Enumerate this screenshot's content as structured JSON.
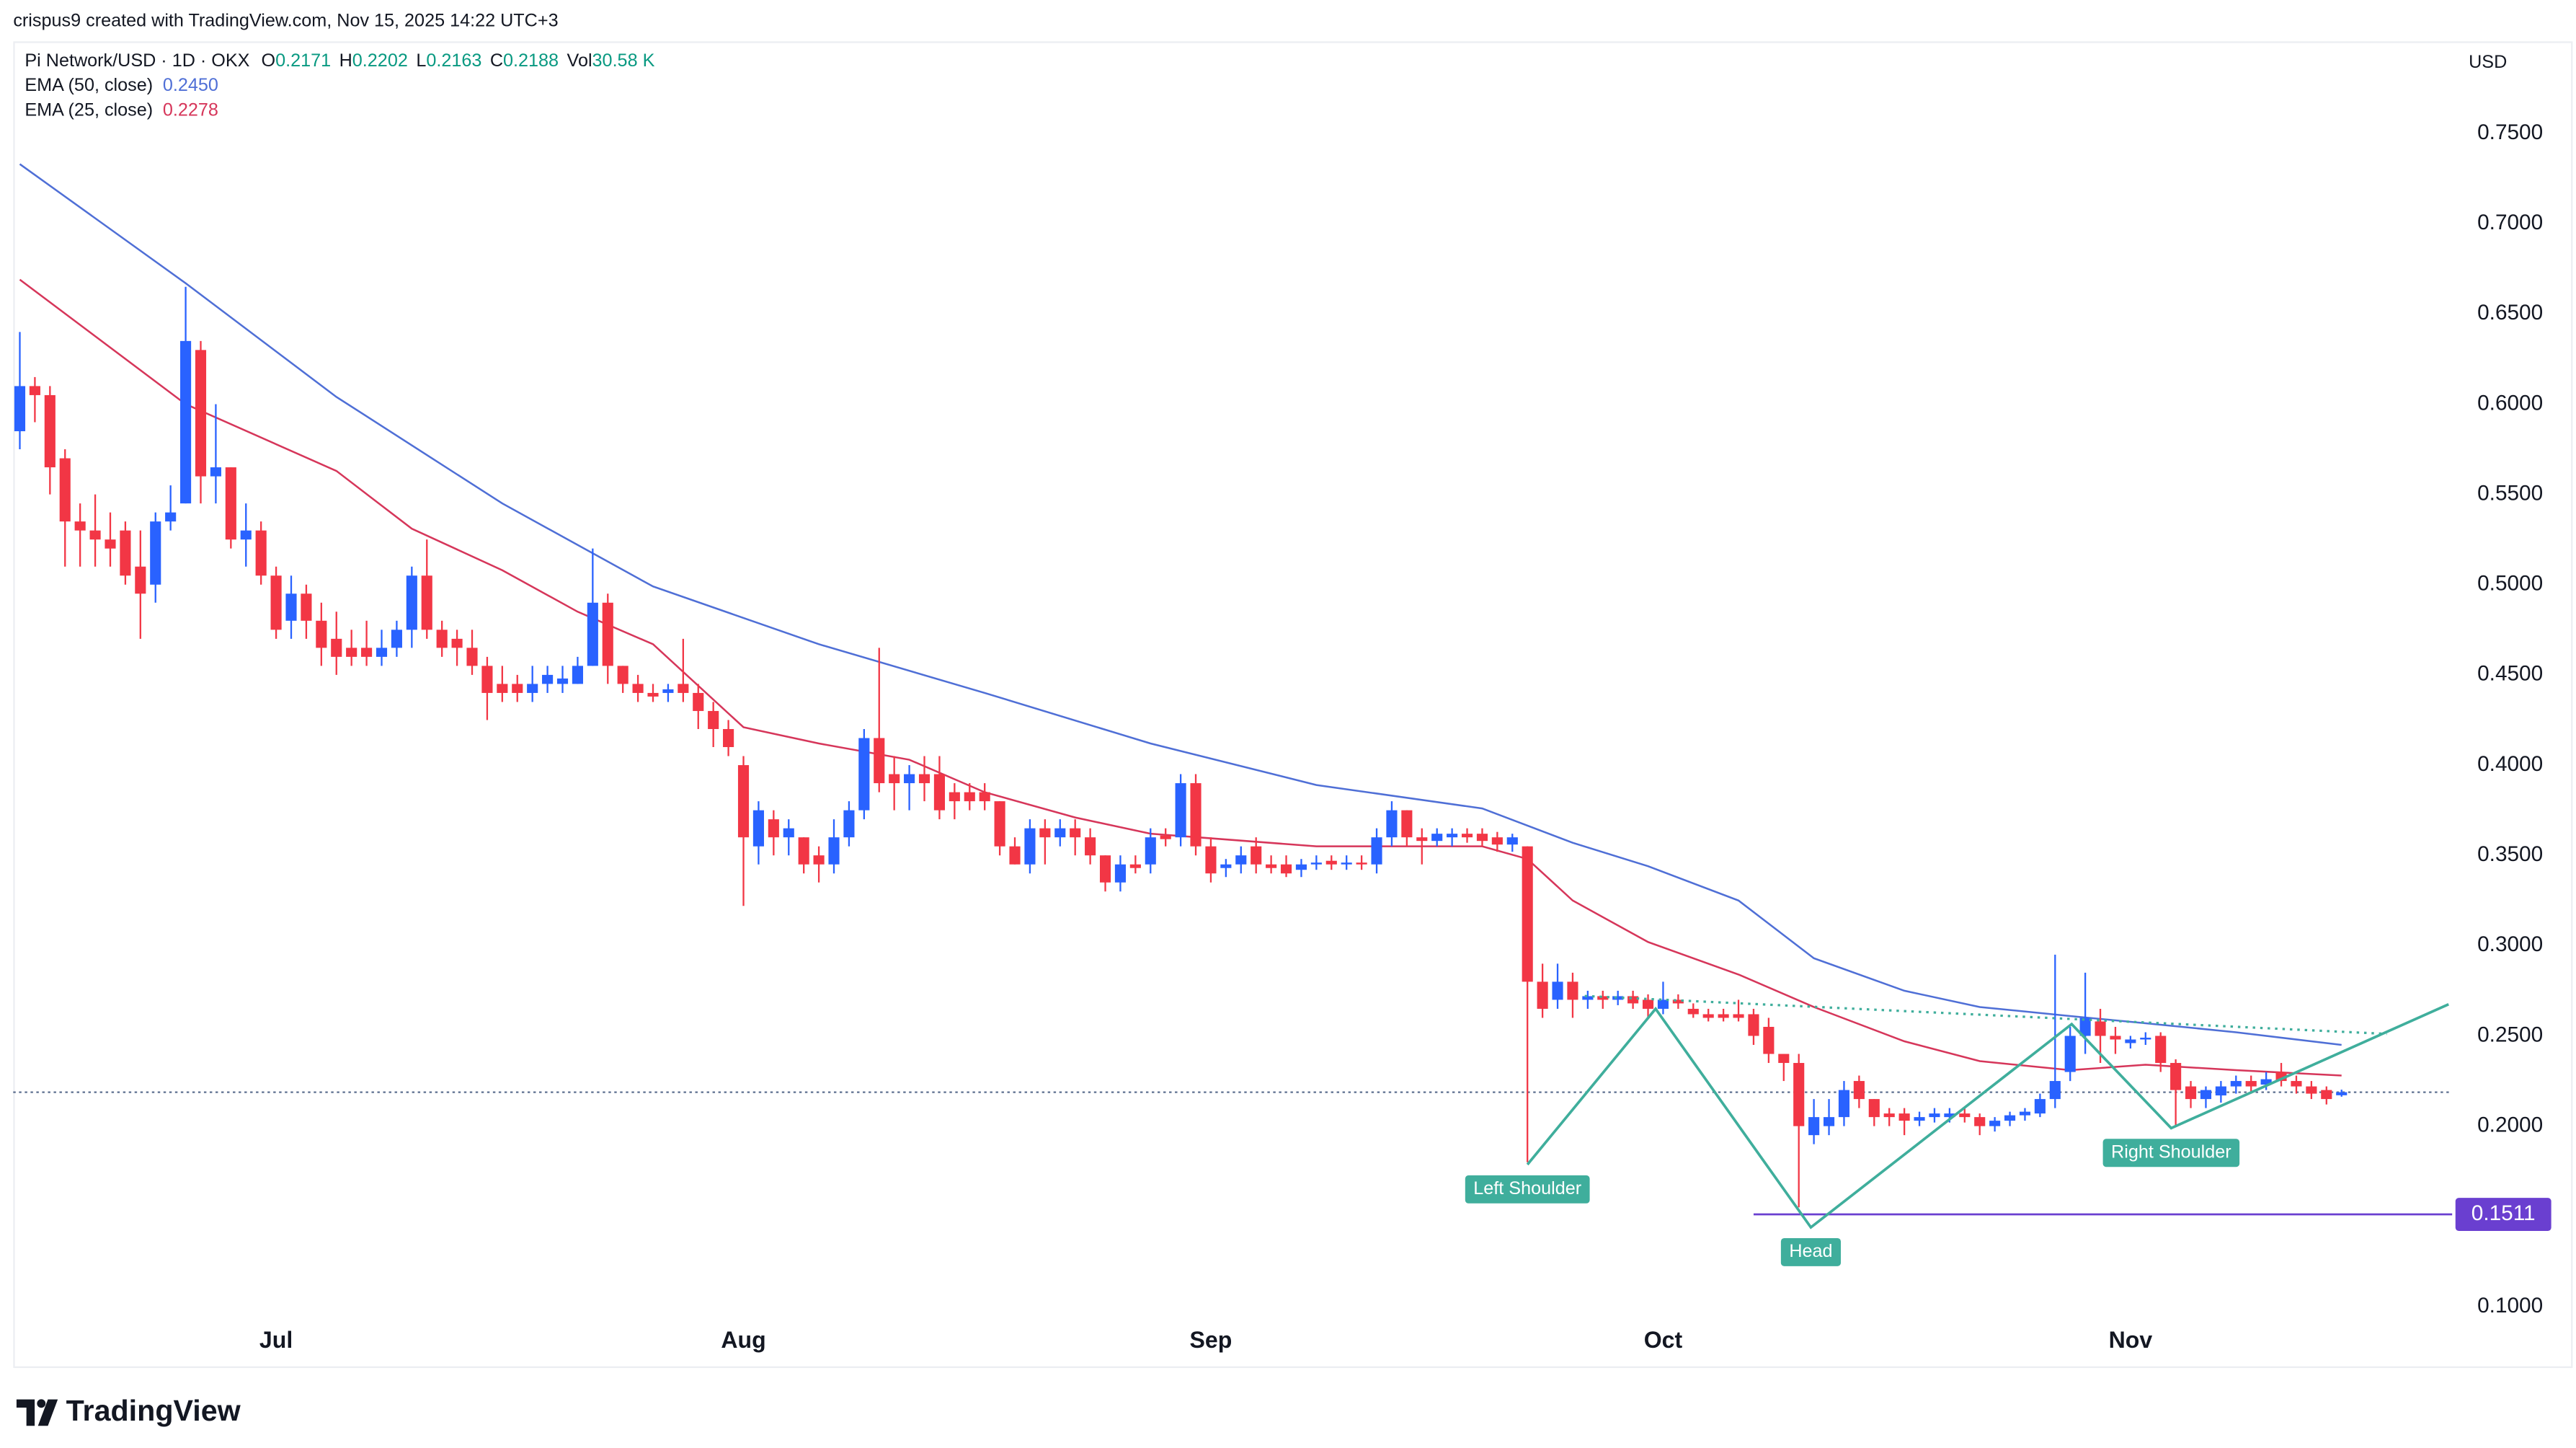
{
  "chart_data": {
    "type": "candlestick",
    "subtitle": "crispus9 created with TradingView.com, Nov 15, 2025 14:22 UTC+3",
    "title": "Pi Network/USD · 1D · OKX",
    "ohlc_labels": [
      "O",
      "H",
      "L",
      "C"
    ],
    "volume_label": "Vol",
    "volume": "30.58 K",
    "categories": [
      null,
      null,
      null,
      null,
      null,
      null,
      null,
      null,
      null,
      null,
      null,
      null,
      null,
      null,
      null,
      null,
      null,
      "Jul",
      null,
      null,
      null,
      null,
      null,
      null,
      null,
      null,
      null,
      null,
      null,
      null,
      null,
      null,
      null,
      null,
      null,
      null,
      null,
      null,
      null,
      null,
      null,
      null,
      null,
      null,
      null,
      null,
      null,
      null,
      "Aug",
      null,
      null,
      null,
      null,
      null,
      null,
      null,
      null,
      null,
      null,
      null,
      null,
      null,
      null,
      null,
      null,
      null,
      null,
      null,
      null,
      null,
      null,
      null,
      null,
      null,
      null,
      null,
      null,
      null,
      null,
      "Sep",
      null,
      null,
      null,
      null,
      null,
      null,
      null,
      null,
      null,
      null,
      null,
      null,
      null,
      null,
      null,
      null,
      null,
      null,
      null,
      null,
      null,
      null,
      null,
      null,
      null,
      null,
      null,
      null,
      null,
      "Oct",
      null,
      null,
      null,
      null,
      null,
      null,
      null,
      null,
      null,
      null,
      null,
      null,
      null,
      null,
      null,
      null,
      null,
      null,
      null,
      null,
      null,
      null,
      null,
      null,
      null,
      null,
      null,
      null,
      null,
      null,
      "Nov",
      null,
      null,
      null,
      null,
      null,
      null,
      null,
      null,
      null,
      null,
      null,
      null,
      null,
      null
    ],
    "candles": {
      "open": [
        0.585,
        0.61,
        0.605,
        0.57,
        0.535,
        0.53,
        0.525,
        0.53,
        0.51,
        0.5,
        0.535,
        0.545,
        0.63,
        0.56,
        0.565,
        0.525,
        0.53,
        0.505,
        0.48,
        0.495,
        0.48,
        0.47,
        0.465,
        0.465,
        0.46,
        0.465,
        0.475,
        0.505,
        0.475,
        0.47,
        0.465,
        0.455,
        0.445,
        0.445,
        0.44,
        0.445,
        0.445,
        0.445,
        0.455,
        0.49,
        0.455,
        0.445,
        0.44,
        0.44,
        0.445,
        0.44,
        0.43,
        0.42,
        0.4,
        0.355,
        0.37,
        0.36,
        0.36,
        0.35,
        0.345,
        0.36,
        0.375,
        0.415,
        0.395,
        0.39,
        0.395,
        0.395,
        0.385,
        0.385,
        0.385,
        0.38,
        0.355,
        0.345,
        0.365,
        0.36,
        0.365,
        0.36,
        0.35,
        0.335,
        0.345,
        0.345,
        0.361,
        0.36,
        0.39,
        0.355,
        0.343,
        0.345,
        0.355,
        0.345,
        0.345,
        0.342,
        0.345,
        0.347,
        0.345,
        0.346,
        0.345,
        0.36,
        0.375,
        0.36,
        0.358,
        0.36,
        0.362,
        0.362,
        0.36,
        0.356,
        0.355,
        0.28,
        0.27,
        0.28,
        0.27,
        0.272,
        0.27,
        0.272,
        0.27,
        0.265,
        0.27,
        0.265,
        0.262,
        0.262,
        0.262,
        0.262,
        0.255,
        0.24,
        0.235,
        0.195,
        0.2,
        0.205,
        0.225,
        0.215,
        0.207,
        0.207,
        0.203,
        0.205,
        0.205,
        0.207,
        0.205,
        0.2,
        0.203,
        0.206,
        0.207,
        0.215,
        0.23,
        0.25,
        0.258,
        0.25,
        0.246,
        0.248,
        0.25,
        0.235,
        0.222,
        0.215,
        0.217,
        0.222,
        0.225,
        0.223,
        0.23,
        0.225,
        0.222,
        0.22,
        0.2171
      ],
      "high": [
        0.64,
        0.615,
        0.61,
        0.575,
        0.545,
        0.55,
        0.54,
        0.535,
        0.53,
        0.54,
        0.555,
        0.665,
        0.635,
        0.6,
        0.565,
        0.545,
        0.535,
        0.51,
        0.505,
        0.5,
        0.49,
        0.485,
        0.475,
        0.48,
        0.475,
        0.48,
        0.51,
        0.525,
        0.48,
        0.475,
        0.475,
        0.46,
        0.455,
        0.45,
        0.455,
        0.455,
        0.455,
        0.46,
        0.52,
        0.495,
        0.455,
        0.45,
        0.445,
        0.445,
        0.47,
        0.445,
        0.435,
        0.425,
        0.405,
        0.38,
        0.375,
        0.37,
        0.36,
        0.355,
        0.37,
        0.38,
        0.42,
        0.465,
        0.405,
        0.4,
        0.405,
        0.405,
        0.39,
        0.39,
        0.39,
        0.38,
        0.36,
        0.37,
        0.37,
        0.37,
        0.37,
        0.365,
        0.35,
        0.35,
        0.35,
        0.365,
        0.365,
        0.395,
        0.395,
        0.36,
        0.348,
        0.355,
        0.36,
        0.35,
        0.35,
        0.348,
        0.35,
        0.35,
        0.35,
        0.35,
        0.365,
        0.38,
        0.375,
        0.365,
        0.365,
        0.365,
        0.365,
        0.365,
        0.363,
        0.362,
        0.355,
        0.29,
        0.29,
        0.285,
        0.275,
        0.275,
        0.275,
        0.275,
        0.273,
        0.28,
        0.273,
        0.268,
        0.265,
        0.265,
        0.27,
        0.265,
        0.26,
        0.24,
        0.24,
        0.215,
        0.215,
        0.225,
        0.228,
        0.215,
        0.21,
        0.21,
        0.208,
        0.21,
        0.21,
        0.21,
        0.207,
        0.205,
        0.208,
        0.21,
        0.218,
        0.295,
        0.255,
        0.285,
        0.265,
        0.255,
        0.25,
        0.252,
        0.252,
        0.237,
        0.225,
        0.222,
        0.225,
        0.228,
        0.228,
        0.23,
        0.235,
        0.228,
        0.225,
        0.222,
        0.2202
      ],
      "low": [
        0.575,
        0.59,
        0.55,
        0.51,
        0.51,
        0.51,
        0.51,
        0.5,
        0.47,
        0.49,
        0.53,
        0.545,
        0.545,
        0.545,
        0.52,
        0.51,
        0.5,
        0.47,
        0.47,
        0.47,
        0.455,
        0.45,
        0.455,
        0.455,
        0.455,
        0.46,
        0.465,
        0.47,
        0.46,
        0.455,
        0.45,
        0.425,
        0.435,
        0.435,
        0.435,
        0.44,
        0.44,
        0.445,
        0.455,
        0.445,
        0.44,
        0.435,
        0.435,
        0.435,
        0.435,
        0.42,
        0.41,
        0.405,
        0.322,
        0.345,
        0.35,
        0.35,
        0.34,
        0.335,
        0.34,
        0.355,
        0.37,
        0.385,
        0.375,
        0.375,
        0.38,
        0.37,
        0.37,
        0.375,
        0.375,
        0.35,
        0.345,
        0.34,
        0.345,
        0.355,
        0.35,
        0.345,
        0.33,
        0.33,
        0.34,
        0.34,
        0.355,
        0.355,
        0.35,
        0.335,
        0.338,
        0.34,
        0.34,
        0.34,
        0.338,
        0.338,
        0.342,
        0.342,
        0.342,
        0.342,
        0.34,
        0.355,
        0.355,
        0.345,
        0.355,
        0.355,
        0.357,
        0.355,
        0.352,
        0.352,
        0.18,
        0.26,
        0.265,
        0.26,
        0.265,
        0.265,
        0.267,
        0.265,
        0.26,
        0.262,
        0.265,
        0.26,
        0.258,
        0.258,
        0.258,
        0.245,
        0.235,
        0.225,
        0.155,
        0.19,
        0.195,
        0.2,
        0.21,
        0.2,
        0.2,
        0.195,
        0.2,
        0.202,
        0.202,
        0.202,
        0.195,
        0.197,
        0.2,
        0.203,
        0.205,
        0.21,
        0.225,
        0.24,
        0.235,
        0.24,
        0.243,
        0.245,
        0.23,
        0.2,
        0.21,
        0.21,
        0.213,
        0.218,
        0.218,
        0.22,
        0.222,
        0.218,
        0.215,
        0.212,
        0.2163
      ],
      "close": [
        0.61,
        0.605,
        0.565,
        0.535,
        0.53,
        0.525,
        0.52,
        0.505,
        0.495,
        0.535,
        0.54,
        0.635,
        0.56,
        0.565,
        0.525,
        0.53,
        0.505,
        0.475,
        0.495,
        0.48,
        0.465,
        0.46,
        0.46,
        0.46,
        0.465,
        0.475,
        0.505,
        0.475,
        0.465,
        0.465,
        0.455,
        0.44,
        0.44,
        0.44,
        0.445,
        0.45,
        0.448,
        0.455,
        0.49,
        0.455,
        0.445,
        0.44,
        0.438,
        0.442,
        0.44,
        0.43,
        0.42,
        0.41,
        0.36,
        0.375,
        0.36,
        0.365,
        0.345,
        0.345,
        0.36,
        0.375,
        0.415,
        0.39,
        0.39,
        0.395,
        0.39,
        0.375,
        0.38,
        0.38,
        0.38,
        0.355,
        0.345,
        0.365,
        0.36,
        0.365,
        0.36,
        0.35,
        0.335,
        0.345,
        0.343,
        0.36,
        0.359,
        0.39,
        0.355,
        0.34,
        0.345,
        0.35,
        0.345,
        0.343,
        0.34,
        0.345,
        0.346,
        0.345,
        0.346,
        0.345,
        0.36,
        0.375,
        0.36,
        0.358,
        0.362,
        0.362,
        0.36,
        0.358,
        0.356,
        0.36,
        0.28,
        0.265,
        0.28,
        0.27,
        0.272,
        0.27,
        0.272,
        0.268,
        0.265,
        0.27,
        0.268,
        0.262,
        0.26,
        0.26,
        0.26,
        0.25,
        0.24,
        0.235,
        0.2,
        0.205,
        0.205,
        0.22,
        0.215,
        0.205,
        0.205,
        0.203,
        0.205,
        0.207,
        0.207,
        0.205,
        0.2,
        0.203,
        0.206,
        0.208,
        0.215,
        0.225,
        0.25,
        0.26,
        0.25,
        0.248,
        0.248,
        0.249,
        0.235,
        0.22,
        0.215,
        0.22,
        0.222,
        0.225,
        0.222,
        0.226,
        0.225,
        0.222,
        0.218,
        0.215,
        0.2188
      ]
    },
    "up_color": "#2962ff",
    "down_color": "#f23645",
    "series": [
      {
        "name": "EMA (50, close)",
        "color": "#4f6fd6",
        "value_label": "0.2450",
        "x": [
          0,
          11,
          21,
          32,
          42,
          53,
          64,
          75,
          86,
          97,
          103,
          108,
          114,
          119,
          125,
          130,
          136,
          141,
          147,
          154
        ],
        "values": [
          0.733,
          0.667,
          0.604,
          0.545,
          0.499,
          0.467,
          0.44,
          0.412,
          0.389,
          0.376,
          0.357,
          0.344,
          0.325,
          0.293,
          0.275,
          0.266,
          0.261,
          0.257,
          0.252,
          0.245
        ]
      },
      {
        "name": "EMA (25, close)",
        "color": "#d6365a",
        "value_label": "0.2278",
        "x": [
          0,
          11,
          21,
          26,
          32,
          37,
          42,
          48,
          53,
          59,
          64,
          70,
          75,
          86,
          97,
          100,
          103,
          108,
          114,
          119,
          125,
          130,
          136,
          141,
          147,
          154
        ],
        "values": [
          0.669,
          0.6,
          0.563,
          0.531,
          0.508,
          0.485,
          0.467,
          0.421,
          0.412,
          0.403,
          0.385,
          0.371,
          0.362,
          0.355,
          0.355,
          0.348,
          0.325,
          0.302,
          0.284,
          0.266,
          0.247,
          0.236,
          0.231,
          0.234,
          0.231,
          0.228
        ]
      }
    ],
    "ylim": [
      0.066,
      0.801
    ],
    "yticks": [
      {
        "value": 0.1,
        "label": "0.1000"
      },
      {
        "value": 0.15,
        "label": "0.1500"
      },
      {
        "value": 0.2,
        "label": "0.2000"
      },
      {
        "value": 0.25,
        "label": "0.2500"
      },
      {
        "value": 0.3,
        "label": "0.3000"
      },
      {
        "value": 0.35,
        "label": "0.3500"
      },
      {
        "value": 0.4,
        "label": "0.4000"
      },
      {
        "value": 0.45,
        "label": "0.4500"
      },
      {
        "value": 0.5,
        "label": "0.5000"
      },
      {
        "value": 0.55,
        "label": "0.5500"
      },
      {
        "value": 0.6,
        "label": "0.6000"
      },
      {
        "value": 0.65,
        "label": "0.6500"
      },
      {
        "value": 0.7,
        "label": "0.7000"
      },
      {
        "value": 0.75,
        "label": "0.7500"
      }
    ],
    "y_axis_label": "USD",
    "level": 0.1511,
    "level_color": "#6a3fd0",
    "pattern": {
      "color": "#3fae9c",
      "x": [
        100,
        108.5,
        118.8,
        136.1,
        142.7,
        161.1
      ],
      "values": [
        0.1787,
        0.265,
        0.1439,
        0.2565,
        0.1989,
        0.2675
      ],
      "neckline": {
        "x": [
          103.8,
          157
        ],
        "values": [
          0.2721,
          0.2511
        ]
      },
      "labels": [
        "Left Shoulder",
        "Head",
        "Right Shoulder"
      ]
    },
    "branding": "TradingView"
  }
}
